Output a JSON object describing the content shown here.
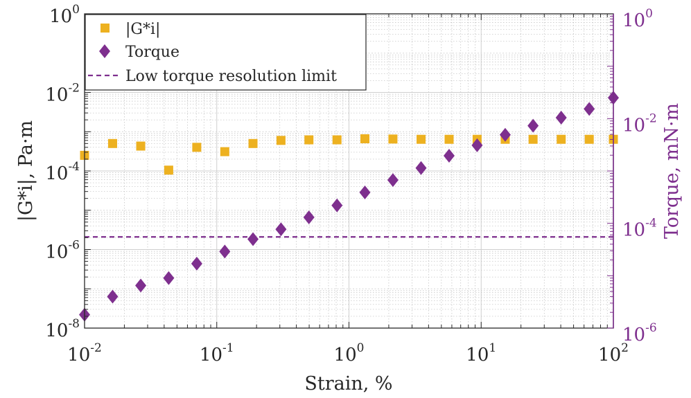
{
  "chart_data": {
    "type": "scatter",
    "x_scale": "log",
    "y_scale": "log",
    "xlim": [
      0.01,
      100
    ],
    "ylim_left": [
      1e-08,
      1
    ],
    "ylim_right": [
      1e-06,
      1
    ],
    "grid": "major and minor",
    "legend_position": "top-left",
    "xlabel": "Strain, %",
    "ylabel_left": "|G*i|, Pa·m",
    "ylabel_right": "Torque, mN·m",
    "x_tick_labels": [
      {
        "base": "10",
        "exp": "-2"
      },
      {
        "base": "10",
        "exp": "-1"
      },
      {
        "base": "10",
        "exp": "0"
      },
      {
        "base": "10",
        "exp": "1"
      },
      {
        "base": "10",
        "exp": "2"
      }
    ],
    "y_left_tick_labels": [
      {
        "base": "10",
        "exp": "-8"
      },
      {
        "base": "10",
        "exp": "-6"
      },
      {
        "base": "10",
        "exp": "-4"
      },
      {
        "base": "10",
        "exp": "-2"
      },
      {
        "base": "10",
        "exp": "0"
      }
    ],
    "y_right_tick_labels": [
      {
        "base": "10",
        "exp": "-6"
      },
      {
        "base": "10",
        "exp": "-4"
      },
      {
        "base": "10",
        "exp": "-2"
      },
      {
        "base": "10",
        "exp": "0"
      }
    ],
    "colors": {
      "gi": "#EDB120",
      "torque": "#7E2F8E",
      "right_axis": "#7E2F8E"
    },
    "series": [
      {
        "name": "|G*i|",
        "axis": "left",
        "marker": "square",
        "x": [
          0.01,
          0.0163,
          0.0266,
          0.0433,
          0.0706,
          0.115,
          0.188,
          0.306,
          0.498,
          0.812,
          1.32,
          2.15,
          3.51,
          5.72,
          9.32,
          15.2,
          24.7,
          40.3,
          65.7,
          100
        ],
        "y": [
          0.00025,
          0.0005,
          0.00043,
          0.000105,
          0.0004,
          0.00031,
          0.0005,
          0.0006,
          0.00062,
          0.00062,
          0.00066,
          0.00065,
          0.00064,
          0.00064,
          0.00064,
          0.00064,
          0.00064,
          0.00064,
          0.00064,
          0.00064
        ]
      },
      {
        "name": "Torque",
        "axis": "right",
        "marker": "diamond",
        "x": [
          0.01,
          0.0163,
          0.0266,
          0.0433,
          0.0706,
          0.115,
          0.188,
          0.306,
          0.498,
          0.812,
          1.32,
          2.15,
          3.51,
          5.72,
          9.32,
          15.2,
          24.7,
          40.3,
          65.7,
          100
        ],
        "y": [
          1.8e-06,
          4e-06,
          6.5e-06,
          9e-06,
          1.7e-05,
          2.9e-05,
          5e-05,
          7.7e-05,
          0.00013,
          0.00022,
          0.00039,
          0.00067,
          0.00114,
          0.00195,
          0.0031,
          0.0049,
          0.0073,
          0.0104,
          0.0153,
          0.025
        ]
      },
      {
        "name": "Low torque resolution limit",
        "axis": "left",
        "style": "dashed",
        "y_constant": 2.1e-06
      }
    ]
  }
}
